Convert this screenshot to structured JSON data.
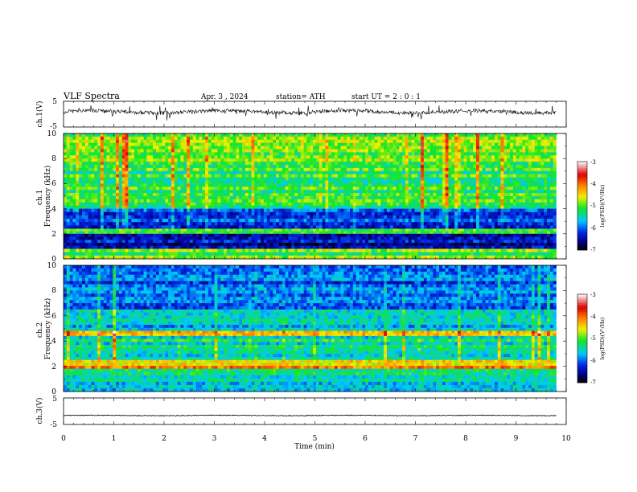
{
  "header": {
    "title": "VLF  Spectra",
    "date": "Apr. 3  , 2024",
    "station": "station= ATH",
    "start": "start  UT  =   2  : 0  : 1"
  },
  "chart_data": [
    {
      "type": "line",
      "panel": "ch1-waveform",
      "ylabel": "ch.1(V)",
      "yticks": [
        "5",
        "-5"
      ],
      "ylim": [
        -5,
        5
      ],
      "xlim": [
        0,
        10
      ],
      "data_extent_min": [
        0,
        9.8
      ],
      "baseline_volts": 0.9,
      "noise_amplitude_volts": 1.5,
      "color": "#000000"
    },
    {
      "type": "heatmap",
      "panel": "ch1-spectrogram",
      "ylabel": "ch.1\nFrequency  (kHz)",
      "yticks": [
        "0",
        "2",
        "4",
        "6",
        "8",
        "10"
      ],
      "ylim": [
        0,
        10
      ],
      "xlim": [
        0,
        10
      ],
      "data_extent_min": [
        0,
        9.8
      ],
      "colorbar": {
        "label": "log(PSD)(V²/Hz)",
        "ticks": [
          "-3",
          "-4",
          "-5",
          "-6",
          "-7"
        ],
        "range": [
          -7,
          -3
        ]
      },
      "levels_log_psd": [
        {
          "freq_khz": [
            7,
            10
          ],
          "mean": -5.0,
          "note": "green with orange/red vertical impulses"
        },
        {
          "freq_khz": [
            4,
            7
          ],
          "mean": -5.2,
          "note": "green/cyan"
        },
        {
          "freq_khz": [
            2.4,
            4
          ],
          "mean": -6.1,
          "note": "blue with cyan lines"
        },
        {
          "freq_khz": [
            2.0,
            2.4
          ],
          "mean": -5.0,
          "note": "green/yellow line band"
        },
        {
          "freq_khz": [
            0.8,
            2.0
          ],
          "mean": -6.5,
          "note": "dark blue"
        },
        {
          "freq_khz": [
            0,
            0.8
          ],
          "mean": -5.0,
          "note": "mixed lines, black near 0"
        }
      ]
    },
    {
      "type": "heatmap",
      "panel": "ch2-spectrogram",
      "ylabel": "ch.2\nFrequency  (kHz)",
      "yticks": [
        "0",
        "2",
        "4",
        "6",
        "8",
        "10"
      ],
      "ylim": [
        0,
        10
      ],
      "xlim": [
        0,
        10
      ],
      "data_extent_min": [
        0,
        9.8
      ],
      "colorbar": {
        "label": "log(PSD)(V²/Hz)",
        "ticks": [
          "-3",
          "-4",
          "-5",
          "-6",
          "-7"
        ],
        "range": [
          -7,
          -3
        ]
      },
      "levels_log_psd": [
        {
          "freq_khz": [
            6.5,
            10
          ],
          "mean": -6.0,
          "note": "blue with green patches"
        },
        {
          "freq_khz": [
            4.8,
            6.5
          ],
          "mean": -5.6,
          "note": "cyan/blue"
        },
        {
          "freq_khz": [
            4.4,
            4.8
          ],
          "mean": -4.3,
          "note": "orange line"
        },
        {
          "freq_khz": [
            2.5,
            4.4
          ],
          "mean": -5.4,
          "note": "cyan with yellow lines"
        },
        {
          "freq_khz": [
            1.8,
            2.5
          ],
          "mean": -4.3,
          "note": "orange/red band"
        },
        {
          "freq_khz": [
            0,
            1.8
          ],
          "mean": -5.5,
          "note": "cyan/green with lines"
        }
      ]
    },
    {
      "type": "line",
      "panel": "ch3-waveform",
      "ylabel": "ch.3(V)",
      "yticks": [
        "5",
        "-5"
      ],
      "ylim": [
        -5,
        5
      ],
      "xlim": [
        0,
        10
      ],
      "data_extent_min": [
        0,
        9.8
      ],
      "baseline_volts": -1.6,
      "noise_amplitude_volts": 0.25,
      "color": "#000000"
    }
  ],
  "xaxis": {
    "label": "Time  (min)",
    "ticks": [
      "0",
      "1",
      "2",
      "3",
      "4",
      "5",
      "6",
      "7",
      "8",
      "9",
      "10"
    ],
    "range": [
      0,
      10
    ]
  }
}
